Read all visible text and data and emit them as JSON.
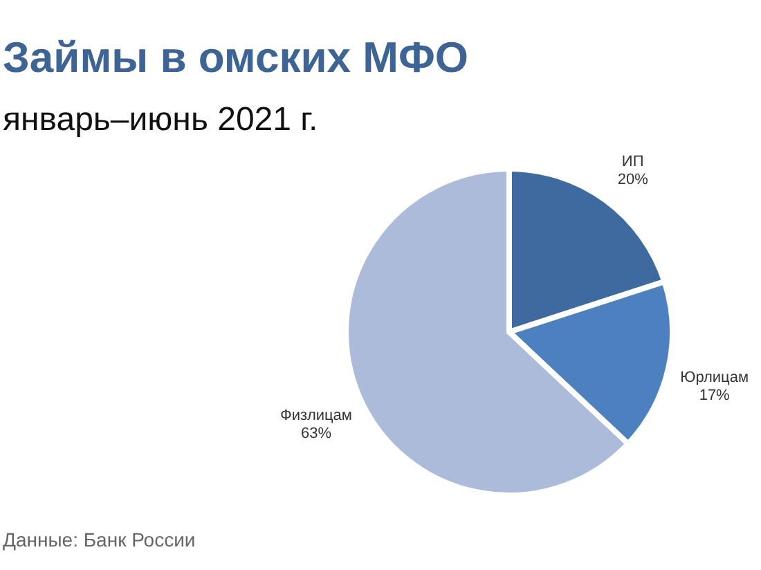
{
  "chart_data": {
    "type": "pie",
    "title": "Займы в омских МФО",
    "subtitle": "январь–июнь 2021 г.",
    "categories": [
      "ИП",
      "Юрлицам",
      "Физлицам"
    ],
    "values": [
      20,
      17,
      63
    ],
    "colors": [
      "#3f6a9f",
      "#4d80be",
      "#abbbd9"
    ],
    "value_labels": [
      "20%",
      "17%",
      "63%"
    ],
    "annotations": [
      "Данные: Банк России"
    ]
  }
}
